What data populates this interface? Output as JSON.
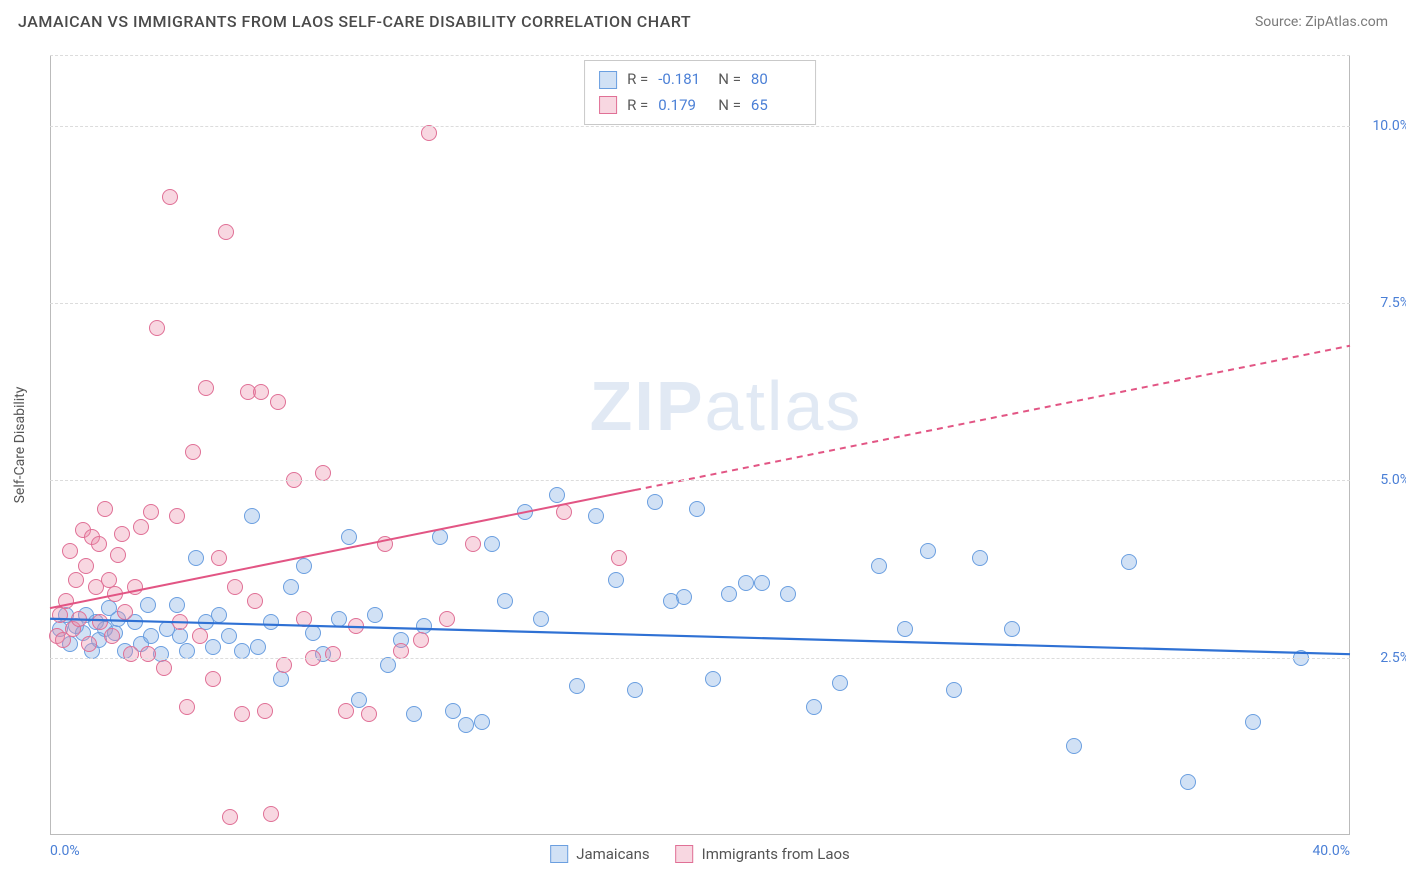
{
  "title": "JAMAICAN VS IMMIGRANTS FROM LAOS SELF-CARE DISABILITY CORRELATION CHART",
  "source": "Source: ZipAtlas.com",
  "ylabel": "Self-Care Disability",
  "watermark_left": "ZIP",
  "watermark_right": "atlas",
  "chart": {
    "type": "scatter",
    "xlim": [
      0,
      40
    ],
    "ylim": [
      0,
      11
    ],
    "x_ticks": [
      {
        "v": 0,
        "label": "0.0%"
      },
      {
        "v": 40,
        "label": "40.0%"
      }
    ],
    "y_ticks": [
      {
        "v": 2.5,
        "label": "2.5%"
      },
      {
        "v": 5,
        "label": "5.0%"
      },
      {
        "v": 7.5,
        "label": "7.5%"
      },
      {
        "v": 10,
        "label": "10.0%"
      }
    ],
    "gridlines_y": [
      2.5,
      5.0,
      7.5,
      10.0,
      11.0
    ],
    "grid_color": "#dcdcdc",
    "background_color": "#ffffff",
    "marker_radius": 8,
    "marker_border": 1.4,
    "series": [
      {
        "name": "Jamaicans",
        "fill": "rgba(123,170,227,0.35)",
        "stroke": "#6b9fe0",
        "R": "-0.181",
        "N": "80",
        "trend": {
          "x1": 0,
          "y1": 3.05,
          "x2": 40,
          "y2": 2.55,
          "color": "#2f71d4",
          "width": 2.2,
          "dash": "none"
        },
        "points": [
          [
            0.3,
            2.9
          ],
          [
            0.5,
            3.1
          ],
          [
            0.6,
            2.7
          ],
          [
            0.8,
            2.95
          ],
          [
            1.0,
            2.85
          ],
          [
            1.1,
            3.1
          ],
          [
            1.3,
            2.6
          ],
          [
            1.4,
            3.0
          ],
          [
            1.5,
            2.75
          ],
          [
            1.7,
            2.9
          ],
          [
            1.8,
            3.2
          ],
          [
            2.0,
            2.85
          ],
          [
            2.1,
            3.05
          ],
          [
            2.3,
            2.6
          ],
          [
            2.6,
            3.0
          ],
          [
            2.8,
            2.7
          ],
          [
            3.0,
            3.25
          ],
          [
            3.1,
            2.8
          ],
          [
            3.4,
            2.55
          ],
          [
            3.6,
            2.9
          ],
          [
            3.9,
            3.25
          ],
          [
            4.0,
            2.8
          ],
          [
            4.2,
            2.6
          ],
          [
            4.5,
            3.9
          ],
          [
            4.8,
            3.0
          ],
          [
            5.0,
            2.65
          ],
          [
            5.2,
            3.1
          ],
          [
            5.5,
            2.8
          ],
          [
            5.9,
            2.6
          ],
          [
            6.2,
            4.5
          ],
          [
            6.4,
            2.65
          ],
          [
            6.8,
            3.0
          ],
          [
            7.1,
            2.2
          ],
          [
            7.4,
            3.5
          ],
          [
            7.8,
            3.8
          ],
          [
            8.1,
            2.85
          ],
          [
            8.4,
            2.55
          ],
          [
            8.9,
            3.05
          ],
          [
            9.2,
            4.2
          ],
          [
            9.5,
            1.9
          ],
          [
            10.0,
            3.1
          ],
          [
            10.4,
            2.4
          ],
          [
            10.8,
            2.75
          ],
          [
            11.2,
            1.7
          ],
          [
            11.5,
            2.95
          ],
          [
            12.0,
            4.2
          ],
          [
            12.4,
            1.75
          ],
          [
            12.8,
            1.55
          ],
          [
            13.3,
            1.6
          ],
          [
            13.6,
            4.1
          ],
          [
            14.0,
            3.3
          ],
          [
            14.6,
            4.55
          ],
          [
            15.1,
            3.05
          ],
          [
            15.6,
            4.8
          ],
          [
            16.2,
            2.1
          ],
          [
            16.8,
            4.5
          ],
          [
            17.4,
            3.6
          ],
          [
            18.0,
            2.05
          ],
          [
            18.6,
            4.7
          ],
          [
            19.1,
            3.3
          ],
          [
            19.5,
            3.35
          ],
          [
            19.9,
            4.6
          ],
          [
            20.4,
            2.2
          ],
          [
            20.9,
            3.4
          ],
          [
            21.4,
            3.55
          ],
          [
            21.9,
            3.55
          ],
          [
            22.7,
            3.4
          ],
          [
            23.5,
            1.8
          ],
          [
            24.3,
            2.15
          ],
          [
            25.5,
            3.8
          ],
          [
            26.3,
            2.9
          ],
          [
            27.0,
            4.0
          ],
          [
            27.8,
            2.05
          ],
          [
            28.6,
            3.9
          ],
          [
            29.6,
            2.9
          ],
          [
            31.5,
            1.25
          ],
          [
            33.2,
            3.85
          ],
          [
            35.0,
            0.75
          ],
          [
            37.0,
            1.6
          ],
          [
            38.5,
            2.5
          ]
        ]
      },
      {
        "name": "Immigrants from Laos",
        "fill": "rgba(236,140,170,0.35)",
        "stroke": "#e07096",
        "R": "0.179",
        "N": "65",
        "trend": {
          "x1": 0,
          "y1": 3.2,
          "x2": 40,
          "y2": 6.9,
          "solid_until_x": 18,
          "color": "#e25584",
          "width": 2.0
        },
        "points": [
          [
            0.2,
            2.8
          ],
          [
            0.3,
            3.1
          ],
          [
            0.4,
            2.75
          ],
          [
            0.5,
            3.3
          ],
          [
            0.6,
            4.0
          ],
          [
            0.7,
            2.9
          ],
          [
            0.8,
            3.6
          ],
          [
            0.9,
            3.05
          ],
          [
            1.0,
            4.3
          ],
          [
            1.1,
            3.8
          ],
          [
            1.2,
            2.7
          ],
          [
            1.3,
            4.2
          ],
          [
            1.4,
            3.5
          ],
          [
            1.5,
            4.1
          ],
          [
            1.55,
            3.0
          ],
          [
            1.7,
            4.6
          ],
          [
            1.8,
            3.6
          ],
          [
            1.9,
            2.8
          ],
          [
            2.0,
            3.4
          ],
          [
            2.1,
            3.95
          ],
          [
            2.2,
            4.25
          ],
          [
            2.3,
            3.15
          ],
          [
            2.5,
            2.55
          ],
          [
            2.6,
            3.5
          ],
          [
            2.8,
            4.35
          ],
          [
            3.0,
            2.55
          ],
          [
            3.1,
            4.55
          ],
          [
            3.3,
            7.15
          ],
          [
            3.5,
            2.35
          ],
          [
            3.7,
            9.0
          ],
          [
            3.9,
            4.5
          ],
          [
            4.0,
            3.0
          ],
          [
            4.2,
            1.8
          ],
          [
            4.4,
            5.4
          ],
          [
            4.6,
            2.8
          ],
          [
            4.8,
            6.3
          ],
          [
            5.0,
            2.2
          ],
          [
            5.2,
            3.9
          ],
          [
            5.4,
            8.5
          ],
          [
            5.55,
            0.25
          ],
          [
            5.7,
            3.5
          ],
          [
            5.9,
            1.7
          ],
          [
            6.1,
            6.25
          ],
          [
            6.3,
            3.3
          ],
          [
            6.5,
            6.25
          ],
          [
            6.6,
            1.75
          ],
          [
            6.8,
            0.3
          ],
          [
            7.0,
            6.1
          ],
          [
            7.2,
            2.4
          ],
          [
            7.5,
            5.0
          ],
          [
            7.8,
            3.05
          ],
          [
            8.1,
            2.5
          ],
          [
            8.4,
            5.1
          ],
          [
            8.7,
            2.55
          ],
          [
            9.1,
            1.75
          ],
          [
            9.4,
            2.95
          ],
          [
            9.8,
            1.7
          ],
          [
            10.3,
            4.1
          ],
          [
            10.8,
            2.6
          ],
          [
            11.4,
            2.75
          ],
          [
            11.65,
            9.9
          ],
          [
            12.2,
            3.05
          ],
          [
            13.0,
            4.1
          ],
          [
            15.8,
            4.55
          ],
          [
            17.5,
            3.9
          ]
        ]
      }
    ]
  },
  "legend_bottom": [
    "Jamaicans",
    "Immigrants from Laos"
  ]
}
